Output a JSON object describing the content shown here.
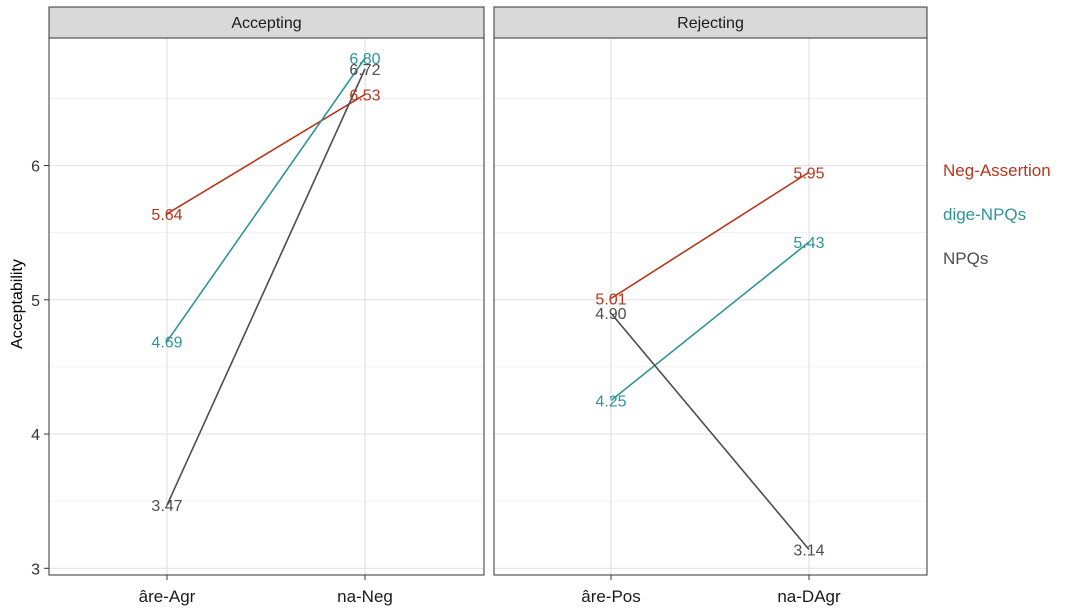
{
  "chart_data": {
    "type": "line",
    "ylabel": "Acceptability",
    "ylim": [
      2.95,
      6.95
    ],
    "y_ticks": [
      3,
      4,
      5,
      6
    ],
    "grid": true,
    "legend_position": "right",
    "series_info": [
      {
        "name": "Neg-Assertion",
        "color": "#b5361d"
      },
      {
        "name": "dige-NPQs",
        "color": "#2f9497"
      },
      {
        "name": "NPQs",
        "color": "#4d4d4d"
      }
    ],
    "panels": [
      {
        "title": "Accepting",
        "categories": [
          "âre-Agr",
          "na-Neg"
        ],
        "series": [
          {
            "name": "Neg-Assertion",
            "values": [
              5.64,
              6.53
            ],
            "labels": [
              "5.64",
              "6.53"
            ]
          },
          {
            "name": "dige-NPQs",
            "values": [
              4.69,
              6.8
            ],
            "labels": [
              "4.69",
              "6.80"
            ]
          },
          {
            "name": "NPQs",
            "values": [
              3.47,
              6.72
            ],
            "labels": [
              "3.47",
              "6.72"
            ]
          }
        ]
      },
      {
        "title": "Rejecting",
        "categories": [
          "âre-Pos",
          "na-DAgr"
        ],
        "series": [
          {
            "name": "Neg-Assertion",
            "values": [
              5.01,
              5.95
            ],
            "labels": [
              "5.01",
              "5.95"
            ]
          },
          {
            "name": "dige-NPQs",
            "values": [
              4.25,
              5.43
            ],
            "labels": [
              "4.25",
              "5.43"
            ]
          },
          {
            "name": "NPQs",
            "values": [
              4.9,
              3.14
            ],
            "labels": [
              "4.90",
              "3.14"
            ]
          }
        ]
      }
    ]
  }
}
